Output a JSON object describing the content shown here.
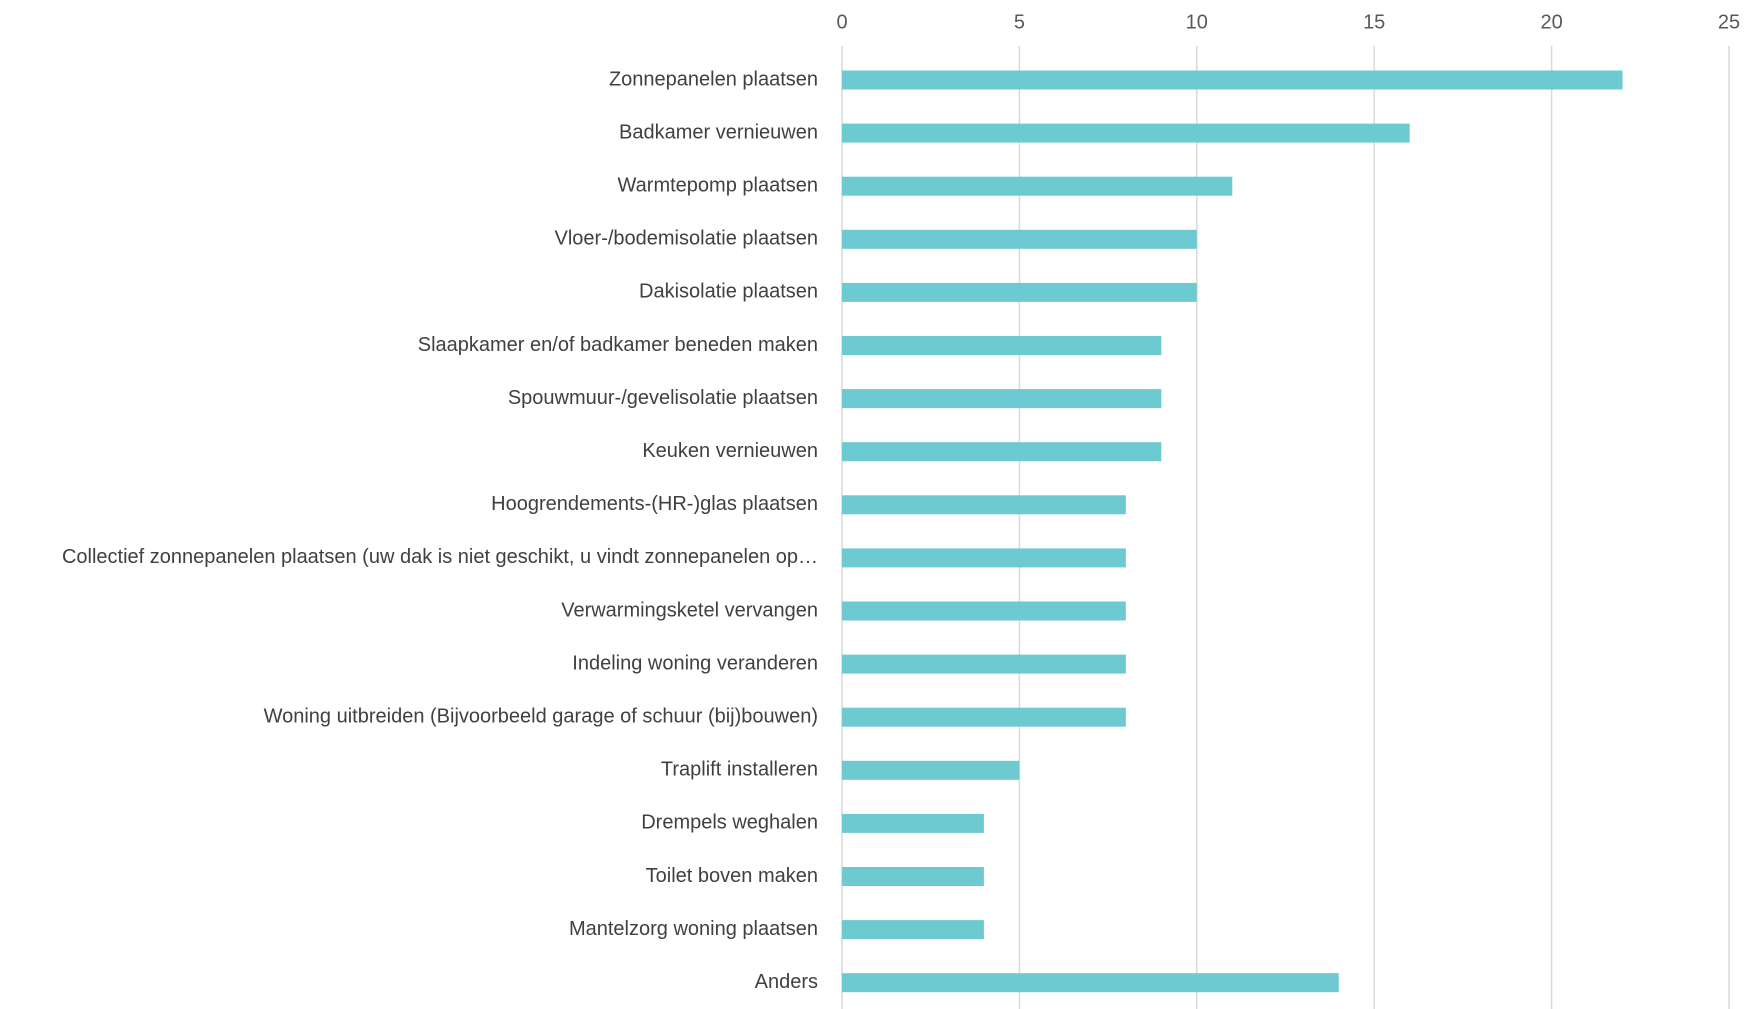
{
  "chart_data": {
    "type": "bar",
    "orientation": "horizontal",
    "title": "",
    "xlabel": "",
    "ylabel": "",
    "xlim": [
      0,
      25
    ],
    "x_ticks": [
      0,
      5,
      10,
      15,
      20,
      25
    ],
    "x_axis_position": "top",
    "grid": true,
    "legend": "none",
    "bar_color": "#6ccad0",
    "categories": [
      "Zonnepanelen plaatsen",
      "Badkamer vernieuwen",
      "Warmtepomp plaatsen",
      "Vloer-/bodemisolatie plaatsen",
      "Dakisolatie plaatsen",
      "Slaapkamer en/of badkamer beneden maken",
      "Spouwmuur-/gevelisolatie plaatsen",
      "Keuken vernieuwen",
      "Hoogrendements-(HR-)glas plaatsen",
      "Collectief zonnepanelen plaatsen (uw dak is niet geschikt, u vindt zonnepanelen op…",
      "Verwarmingsketel vervangen",
      "Indeling woning veranderen",
      "Woning uitbreiden (Bijvoorbeeld garage of schuur (bij)bouwen)",
      "Traplift installeren",
      "Drempels weghalen",
      "Toilet boven maken",
      "Mantelzorg woning plaatsen",
      "Anders"
    ],
    "values": [
      22,
      16,
      11,
      10,
      10,
      9,
      9,
      9,
      8,
      8,
      8,
      8,
      8,
      5,
      4,
      4,
      4,
      14
    ]
  }
}
